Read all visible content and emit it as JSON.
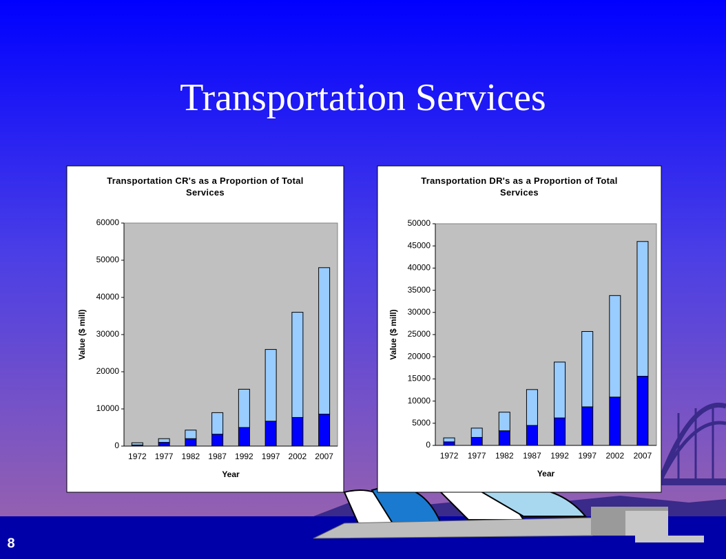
{
  "title": "Transportation Services",
  "page_number": "8",
  "chart_data": [
    {
      "type": "bar",
      "stacked": true,
      "title": "Transportation CR's as a Proportion of Total Services",
      "x_label": "Year",
      "y_label": "Value ($ mill)",
      "categories": [
        "1972",
        "1977",
        "1982",
        "1987",
        "1992",
        "1997",
        "2002",
        "2007"
      ],
      "series": [
        {
          "color": "#0000ff",
          "values": [
            300,
            1000,
            2000,
            3200,
            5000,
            6700,
            7700,
            8600
          ]
        },
        {
          "color": "#99ccff",
          "values": [
            600,
            1000,
            2300,
            5800,
            10300,
            19300,
            28300,
            39400
          ]
        }
      ],
      "ylim": [
        0,
        60000
      ],
      "yticks": [
        0,
        10000,
        20000,
        30000,
        40000,
        50000,
        60000
      ],
      "plot_background": "#c0c0c0"
    },
    {
      "type": "bar",
      "stacked": true,
      "title": "Transportation DR's as a Proportion of Total Services",
      "x_label": "Year",
      "y_label": "Value ($ mill)",
      "categories": [
        "1972",
        "1977",
        "1982",
        "1987",
        "1992",
        "1997",
        "2002",
        "2007"
      ],
      "series": [
        {
          "color": "#0000ff",
          "values": [
            800,
            1800,
            3300,
            4500,
            6200,
            8700,
            10900,
            15600
          ]
        },
        {
          "color": "#99ccff",
          "values": [
            900,
            2100,
            4200,
            8100,
            12600,
            17000,
            22900,
            30400
          ]
        }
      ],
      "ylim": [
        0,
        50000
      ],
      "yticks": [
        0,
        5000,
        10000,
        15000,
        20000,
        25000,
        30000,
        35000,
        40000,
        45000,
        50000
      ],
      "plot_background": "#c0c0c0"
    }
  ]
}
